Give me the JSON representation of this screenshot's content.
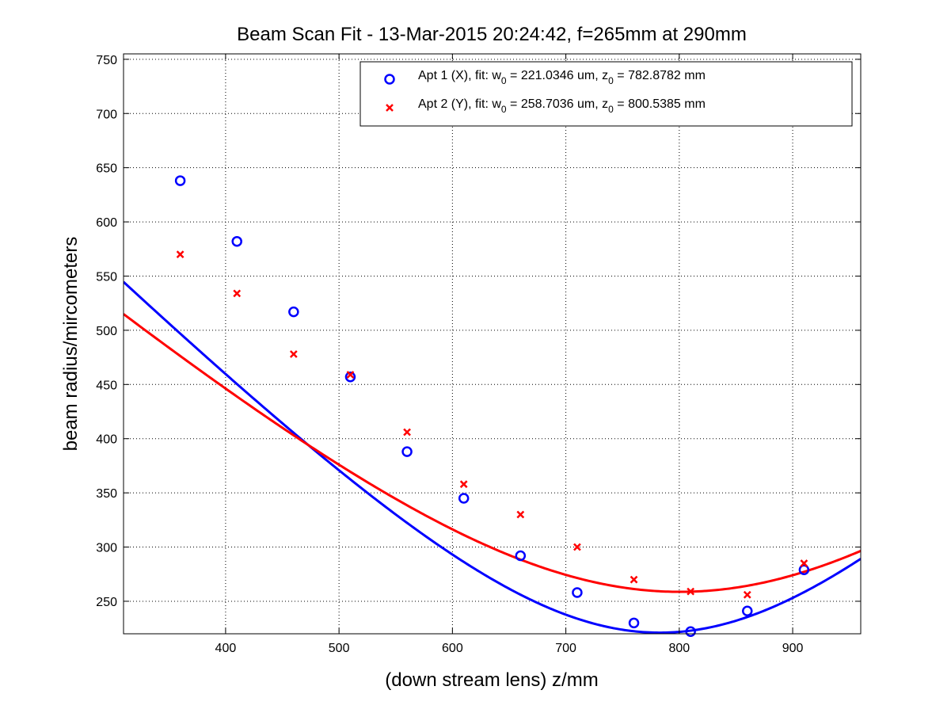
{
  "chart_data": {
    "type": "scatter",
    "title": "Beam Scan Fit - 13-Mar-2015 20:24:42, f=265mm at 290mm",
    "xlabel": "(down stream lens) z/mm",
    "ylabel": "beam radius/mircometers",
    "xlim": [
      310,
      960
    ],
    "ylim": [
      220,
      755
    ],
    "xticks": [
      400,
      500,
      600,
      700,
      800,
      900
    ],
    "yticks": [
      250,
      300,
      350,
      400,
      450,
      500,
      550,
      600,
      650,
      700,
      750
    ],
    "grid": true,
    "legend_position": "top-right",
    "series": [
      {
        "name": "Apt 1 (X)",
        "color": "#0000ff",
        "marker": "circle",
        "fit_w0": 221.0346,
        "fit_z0": 782.8782,
        "x": [
          360,
          410,
          460,
          510,
          560,
          610,
          660,
          710,
          760,
          810,
          860,
          910
        ],
        "y": [
          638,
          582,
          517,
          457,
          388,
          345,
          292,
          258,
          230,
          222,
          241,
          279
        ]
      },
      {
        "name": "Apt 2 (Y)",
        "color": "#ff0000",
        "marker": "x",
        "fit_w0": 258.7036,
        "fit_z0": 800.5385,
        "x": [
          360,
          410,
          460,
          510,
          560,
          610,
          660,
          710,
          760,
          810,
          860,
          910
        ],
        "y": [
          570,
          534,
          478,
          459,
          406,
          358,
          330,
          300,
          270,
          259,
          256,
          285
        ]
      }
    ],
    "legend": [
      {
        "pre": "Apt 1 (X), fit: w",
        "sub1": "0",
        "mid": " = 221.0346 um, z",
        "sub2": "0",
        "post": " = 782.8782 mm"
      },
      {
        "pre": "Apt 2 (Y), fit: w",
        "sub1": "0",
        "mid": " = 258.7036 um, z",
        "sub2": "0",
        "post": " = 800.5385 mm"
      }
    ]
  }
}
